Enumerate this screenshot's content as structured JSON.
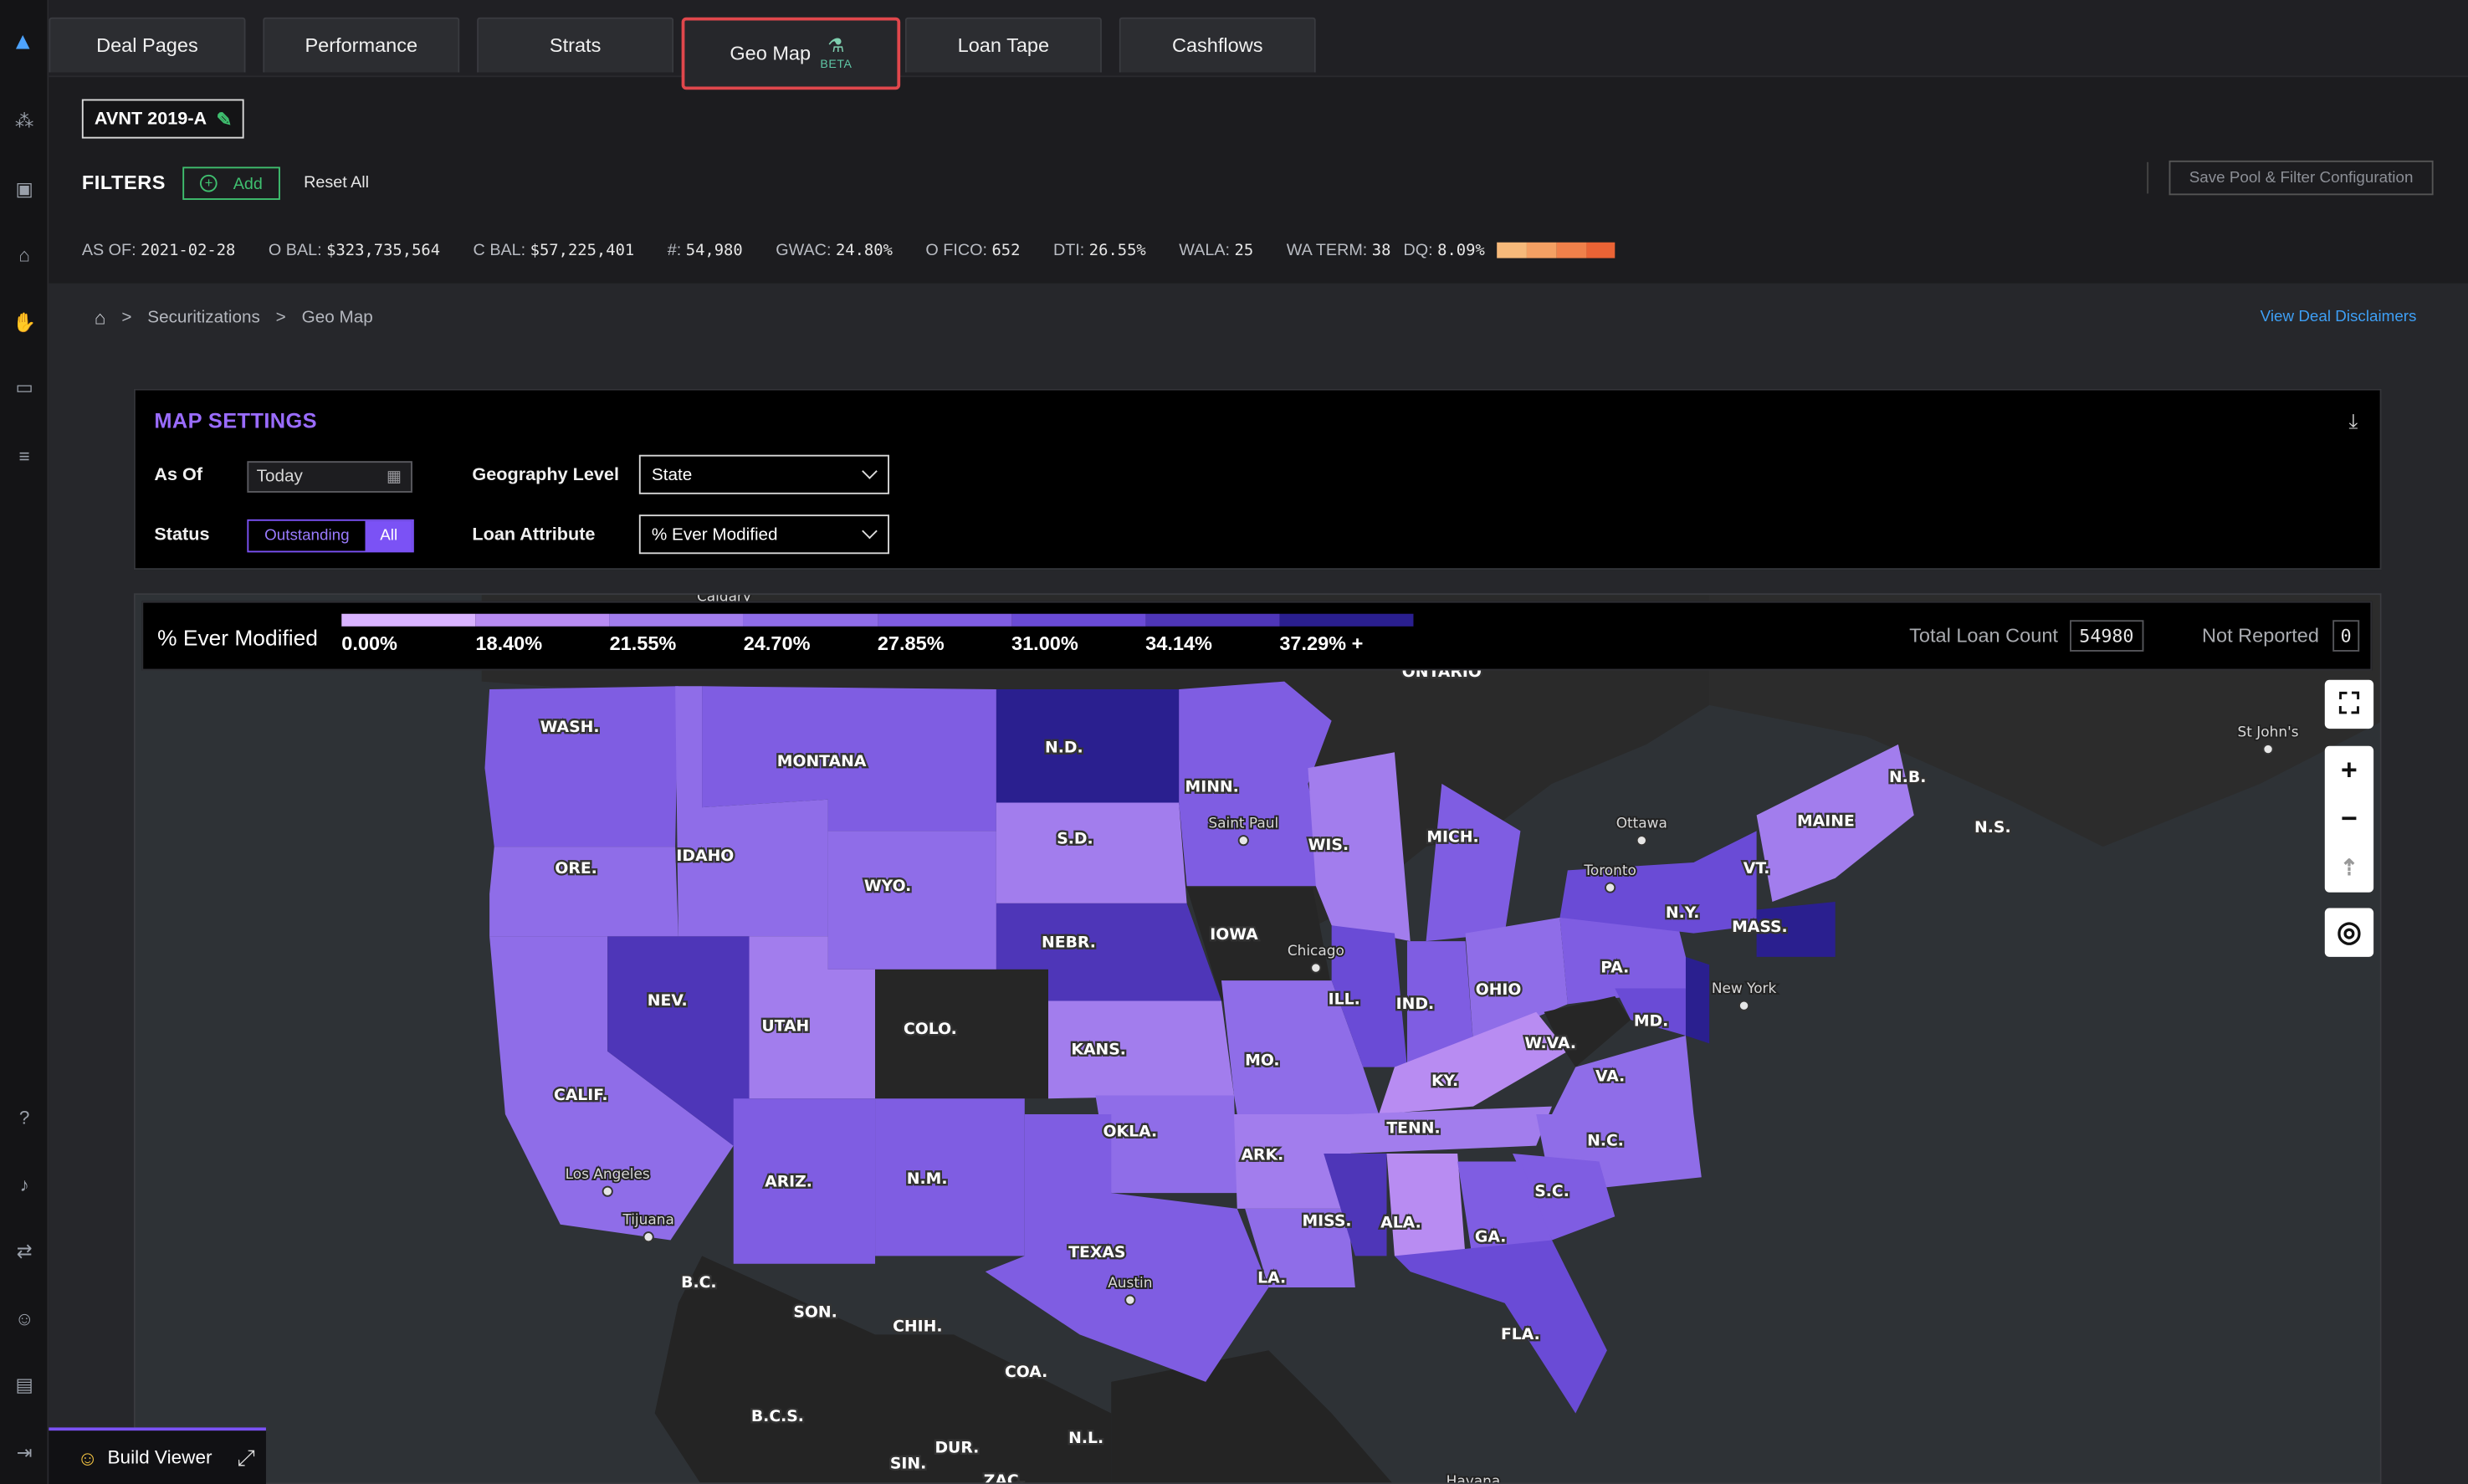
{
  "tabs": {
    "deal_pages": "Deal Pages",
    "performance": "Performance",
    "strats": "Strats",
    "geo_map": "Geo Map",
    "geo_map_badge": "BETA",
    "loan_tape": "Loan Tape",
    "cashflows": "Cashflows"
  },
  "deal": {
    "name": "AVNT 2019-A"
  },
  "filters": {
    "label": "FILTERS",
    "add": "Add",
    "reset": "Reset All",
    "save": "Save Pool & Filter Configuration"
  },
  "stats": {
    "as_of_k": "AS OF:",
    "as_of_v": "2021-02-28",
    "obal_k": "O BAL:",
    "obal_v": "$323,735,564",
    "cbal_k": "C BAL:",
    "cbal_v": "$57,225,401",
    "count_k": "#:",
    "count_v": "54,980",
    "gwac_k": "GWAC:",
    "gwac_v": "24.80%",
    "ofico_k": "O FICO:",
    "ofico_v": "652",
    "dti_k": "DTI:",
    "dti_v": "26.55%",
    "wala_k": "WALA:",
    "wala_v": "25",
    "waterm_k": "WA TERM:",
    "waterm_v": "38",
    "dq_k": "DQ:",
    "dq_v": "8.09%",
    "dq_colors": [
      "#f6b97a",
      "#f4a063",
      "#f0804a",
      "#ea6335"
    ]
  },
  "breadcrumb": {
    "level1": "Securitizations",
    "level2": "Geo Map",
    "separator": ">"
  },
  "disclaimers": "View Deal Disclaimers",
  "settings": {
    "title": "MAP SETTINGS",
    "as_of_label": "As Of",
    "as_of_value": "Today",
    "status_label": "Status",
    "status_outstanding": "Outstanding",
    "status_all": "All",
    "geo_label": "Geography Level",
    "geo_value": "State",
    "attr_label": "Loan Attribute",
    "attr_value": "% Ever Modified"
  },
  "legend": {
    "title": "% Ever Modified",
    "bins": [
      "0.00%",
      "18.40%",
      "21.55%",
      "24.70%",
      "27.85%",
      "31.00%",
      "34.14%",
      "37.29% +"
    ],
    "colors": [
      "#d9b3ff",
      "#b88cf2",
      "#a27ded",
      "#8f6de8",
      "#7f5de2",
      "#6a4bd6",
      "#4e36b8",
      "#2a1f8f"
    ],
    "total_loan_count_label": "Total Loan Count",
    "total_loan_count": "54980",
    "not_reported_label": "Not Reported",
    "not_reported": "0"
  },
  "map": {
    "state_labels": [
      "WASH.",
      "MONTANA",
      "N.D.",
      "MINN.",
      "S.D.",
      "ORE.",
      "IDAHO",
      "WYO.",
      "WIS.",
      "MICH.",
      "NEBR.",
      "IOWA",
      "NEV.",
      "UTAH",
      "COLO.",
      "KANS.",
      "ILL.",
      "IND.",
      "OHIO",
      "PA.",
      "N.Y.",
      "MAINE",
      "VT.",
      "MASS.",
      "CALIF.",
      "MO.",
      "KY.",
      "W.VA.",
      "VA.",
      "MD.",
      "TENN.",
      "N.C.",
      "OKLA.",
      "ARK.",
      "ARIZ.",
      "N.M.",
      "S.C.",
      "MISS.",
      "ALA.",
      "GA.",
      "TEXAS",
      "LA.",
      "FLA.",
      "N.B.",
      "N.S.",
      "B.C.",
      "SON.",
      "CHIH.",
      "COA.",
      "B.C.S.",
      "SIN.",
      "DUR.",
      "N.L.",
      "ZAC.",
      "ONTARIO"
    ],
    "city_labels": [
      "Saint Paul",
      "Chicago",
      "Ottawa",
      "Toronto",
      "New York",
      "Los Angeles",
      "Tijuana",
      "Austin",
      "St John's",
      "Havana",
      "Calgary"
    ],
    "colors": {
      "no_data": "#262626",
      "ocean": "#2e3236",
      "land": "#2a2a2a"
    }
  },
  "build_viewer": {
    "label": "Build Viewer"
  }
}
